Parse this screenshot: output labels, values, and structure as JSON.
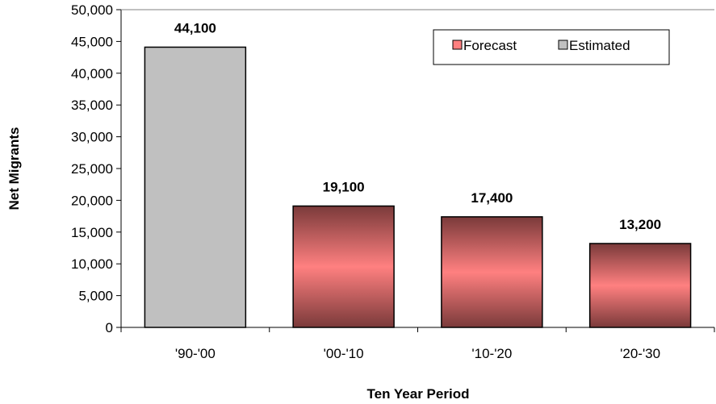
{
  "chart_data": {
    "type": "bar",
    "categories": [
      "'90-'00",
      "'00-'10",
      "'10-'20",
      "'20-'30"
    ],
    "values": [
      44100,
      19100,
      17400,
      13200
    ],
    "data_labels": [
      "44,100",
      "19,100",
      "17,400",
      "13,200"
    ],
    "bar_series": [
      "Estimated",
      "Forecast",
      "Forecast",
      "Forecast"
    ],
    "series": [
      {
        "name": "Forecast",
        "color": "#ff8080"
      },
      {
        "name": "Estimated",
        "color": "#c0c0c0"
      }
    ],
    "xlabel": "Ten Year Period",
    "ylabel": "Net Migrants",
    "ylim": [
      0,
      50000
    ],
    "yticks": [
      0,
      5000,
      10000,
      15000,
      20000,
      25000,
      30000,
      35000,
      40000,
      45000,
      50000
    ],
    "ytick_labels": [
      "0",
      "5,000",
      "10,000",
      "15,000",
      "20,000",
      "25,000",
      "30,000",
      "35,000",
      "40,000",
      "45,000",
      "50,000"
    ],
    "grid": false,
    "legend_position": "top-right"
  }
}
